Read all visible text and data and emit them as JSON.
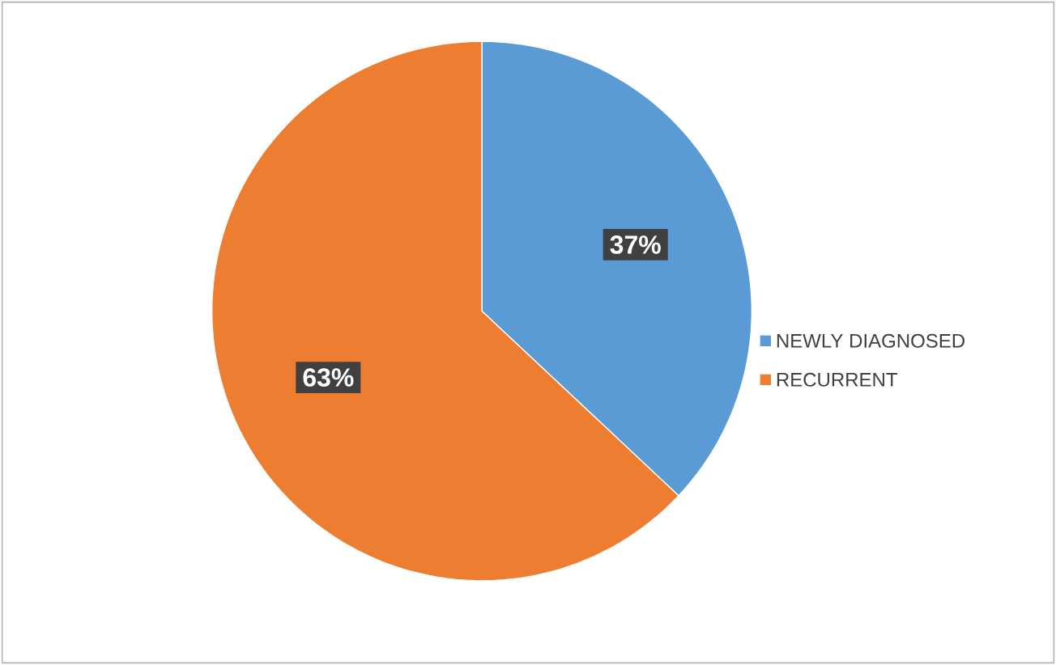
{
  "chart_data": {
    "type": "pie",
    "categories": [
      "NEWLY DIAGNOSED",
      "RECURRENT"
    ],
    "values": [
      37,
      63
    ],
    "colors": [
      "#5b9bd5",
      "#ed7d31"
    ],
    "value_labels": [
      "37%",
      "63%"
    ],
    "legend": "right"
  }
}
